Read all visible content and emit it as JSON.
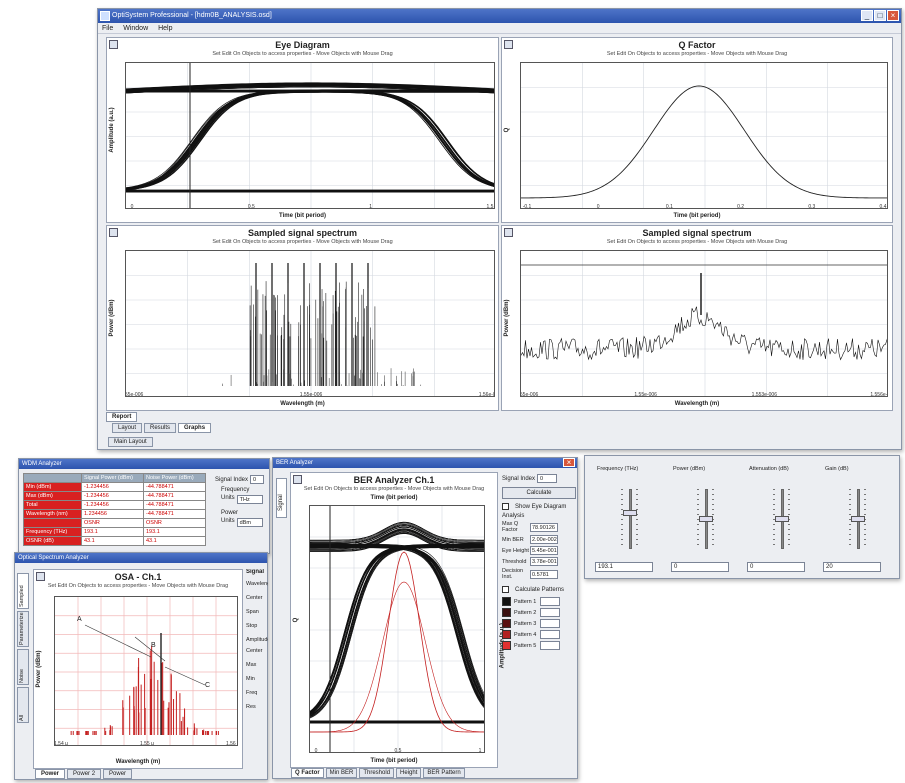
{
  "main_window": {
    "title": "OptiSystem Professional - [hdm0B_ANALYSIS.osd]",
    "menu": [
      "File",
      "Window",
      "Help"
    ],
    "tabs": [
      "Layout",
      "Results",
      "Graphs"
    ],
    "subtab": "Main Layout",
    "report_tab": "Report"
  },
  "panels": {
    "eye": {
      "title": "Eye Diagram",
      "hint": "Set Edit On Objects to access properties - Move Objects with Mouse Drag",
      "xlabel": "Time (bit period)",
      "ylabel": "Amplitude (a.u.)",
      "xticks": [
        "0",
        "0.5",
        "1",
        "1.5"
      ]
    },
    "q": {
      "title": "Q Factor",
      "hint": "Set Edit On Objects to access properties - Move Objects with Mouse Drag",
      "xlabel": "Time (bit period)",
      "ylabel": "Q",
      "xticks": [
        "-0.1",
        "0",
        "0.1",
        "0.2",
        "0.3",
        "0.4"
      ]
    },
    "spec1": {
      "title": "Sampled signal spectrum",
      "hint": "Set Edit On Objects to access properties - Move Objects with Mouse Drag",
      "xlabel": "Wavelength (m)",
      "ylabel": "Power (dBm)",
      "xticks": [
        "1.55e-006",
        "1.55e-006",
        "1.56e-006"
      ]
    },
    "spec2": {
      "title": "Sampled signal spectrum",
      "hint": "Set Edit On Objects to access properties - Move Objects with Mouse Drag",
      "xlabel": "Wavelength (m)",
      "ylabel": "Power (dBm)",
      "xticks": [
        "1.55e-006",
        "1.55e-006",
        "1.553e-006",
        "1.556e-006"
      ]
    }
  },
  "wdm": {
    "title": "WDM Analyzer",
    "header": [
      "Signal Power (dBm)",
      "Noise Power (dBm)"
    ],
    "rows": [
      {
        "label": "Min (dBm)",
        "a": "-1.234456",
        "b": "-44.788471"
      },
      {
        "label": "Max (dBm)",
        "a": "-1.234456",
        "b": "-44.788471"
      },
      {
        "label": "Total",
        "a": "-1.234456",
        "b": "-44.788471"
      },
      {
        "label": "Wavelength (nm)",
        "a": "1.234456",
        "b": "-44.788471"
      },
      {
        "label": "",
        "a": "OSNR",
        "b": "OSNR"
      },
      {
        "label": "Frequency (THz)",
        "a": "193.1",
        "b": "193.1"
      },
      {
        "label": "OSNR (dB)",
        "a": "43.1",
        "b": "43.1"
      }
    ],
    "signal_index_label": "Signal Index",
    "signal_index": "0",
    "frequency_label": "Frequency",
    "power_label": "Power",
    "units_label": "Units",
    "freq_unit": "THz",
    "power_unit": "dBm"
  },
  "osa": {
    "title": "Optical Spectrum Analyzer",
    "chart_title": "OSA - Ch.1",
    "hint": "Set Edit On Objects to access properties - Move Objects with Mouse Drag",
    "xlabel": "Wavelength (m)",
    "ylabel": "Power (dBm)",
    "side_tabs": [
      "Sampled",
      "Parameterized",
      "Noise",
      "All"
    ],
    "labels": [
      "A",
      "B",
      "C"
    ],
    "xticks": [
      "1.54 μ",
      "1.55 μ",
      "1.56 μ"
    ],
    "right_title": "Signal",
    "right_items": [
      "Wavelength",
      "Center",
      "Span",
      "Stop",
      "Amplitude",
      "Center",
      "Max",
      "Min",
      "Freq",
      "Res"
    ],
    "tabs": [
      "Power",
      "Power 2",
      "Power"
    ]
  },
  "ber": {
    "title": "BER Analyzer",
    "chart_title": "BER Analyzer Ch.1",
    "hint": "Set Edit On Objects to access properties - Move Objects with Mouse Drag",
    "xlabel_top": "Time (bit period)",
    "xlabel": "Time (bit period)",
    "ylabel": "Q",
    "ylabel_right": "Amplitude (a.u.)",
    "xticks": [
      "0",
      "0.5",
      "1"
    ],
    "side_tab": "Signal",
    "signal_index_label": "Signal Index",
    "signal_index": "0",
    "calc_button": "Calculate",
    "show_eye": "Show Eye Diagram",
    "results_label": "Analysis",
    "results": [
      {
        "k": "Max Q Factor",
        "v": "78.90126"
      },
      {
        "k": "Min BER",
        "v": "2.00e-002"
      },
      {
        "k": "Eye Height",
        "v": "5.45e-001"
      },
      {
        "k": "Threshold",
        "v": "3.78e-001"
      },
      {
        "k": "Decision Inst.",
        "v": "0.5781"
      }
    ],
    "calc_patterns": "Calculate Patterns",
    "patterns": [
      {
        "k": "Pattern 1",
        "color": "#111111"
      },
      {
        "k": "Pattern 2",
        "color": "#3a1010"
      },
      {
        "k": "Pattern 3",
        "color": "#5a1010"
      },
      {
        "k": "Pattern 4",
        "color": "#b22222"
      },
      {
        "k": "Pattern 5",
        "color": "#e03030"
      }
    ],
    "tabs": [
      "Q Factor",
      "Min BER",
      "Threshold",
      "Height",
      "BER Pattern"
    ]
  },
  "param_window": {
    "columns": [
      {
        "label": "Frequency (THz)",
        "value": "193.1",
        "level": 0.6
      },
      {
        "label": "Power (dBm)",
        "value": "0",
        "level": 0.5
      },
      {
        "label": "Attenuation (dB)",
        "value": "0",
        "level": 0.5
      },
      {
        "label": "Gain (dB)",
        "value": "20",
        "level": 0.5
      }
    ]
  },
  "colors": {
    "accent": "#2d54ae",
    "trace": "#111111",
    "osa_red": "#c42020",
    "grid": "#d4d8df"
  }
}
